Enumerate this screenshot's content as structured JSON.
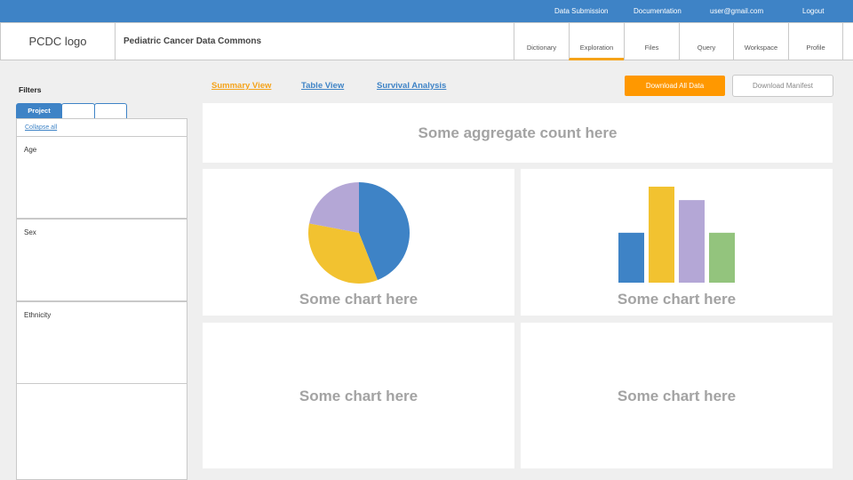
{
  "topnav": {
    "data_submission": "Data Submission",
    "documentation": "Documentation",
    "user_email": "user@gmail.com",
    "logout": "Logout"
  },
  "header": {
    "logo": "PCDC logo",
    "title": "Pediatric Cancer Data Commons",
    "tabs": [
      {
        "label": "Dictionary",
        "active": false
      },
      {
        "label": "Exploration",
        "active": true
      },
      {
        "label": "Files",
        "active": false
      },
      {
        "label": "Query",
        "active": false
      },
      {
        "label": "Workspace",
        "active": false
      },
      {
        "label": "Profile",
        "active": false
      }
    ]
  },
  "filters": {
    "title": "Filters",
    "tabs": [
      "Project",
      "",
      ""
    ],
    "collapse_all": "Collapse all",
    "sections": [
      "Age",
      "Sex",
      "Ethnicity"
    ]
  },
  "views": {
    "summary": "Summary View",
    "table": "Table View",
    "survival": "Survival Analysis"
  },
  "actions": {
    "download_all": "Download All Data",
    "download_manifest": "Download Manifest"
  },
  "cards": {
    "aggregate": "Some aggregate count here",
    "chart_placeholder": "Some chart here"
  },
  "colors": {
    "brand_blue": "#3e83c6",
    "accent_orange": "#ff9800",
    "active_tab_underline": "#f5a31a",
    "pie_blue": "#3e83c6",
    "pie_yellow": "#f2c230",
    "pie_purple": "#b4a7d6",
    "bar_green": "#93c47d"
  },
  "chart_data": [
    {
      "type": "pie",
      "slices": [
        {
          "value": 44,
          "color": "#3e83c6"
        },
        {
          "value": 34,
          "color": "#f2c230"
        },
        {
          "value": 22,
          "color": "#b4a7d6"
        }
      ]
    },
    {
      "type": "bar",
      "values": [
        {
          "value": 52,
          "color": "#3e83c6"
        },
        {
          "value": 100,
          "color": "#f2c230"
        },
        {
          "value": 86,
          "color": "#b4a7d6"
        },
        {
          "value": 52,
          "color": "#93c47d"
        }
      ]
    }
  ]
}
